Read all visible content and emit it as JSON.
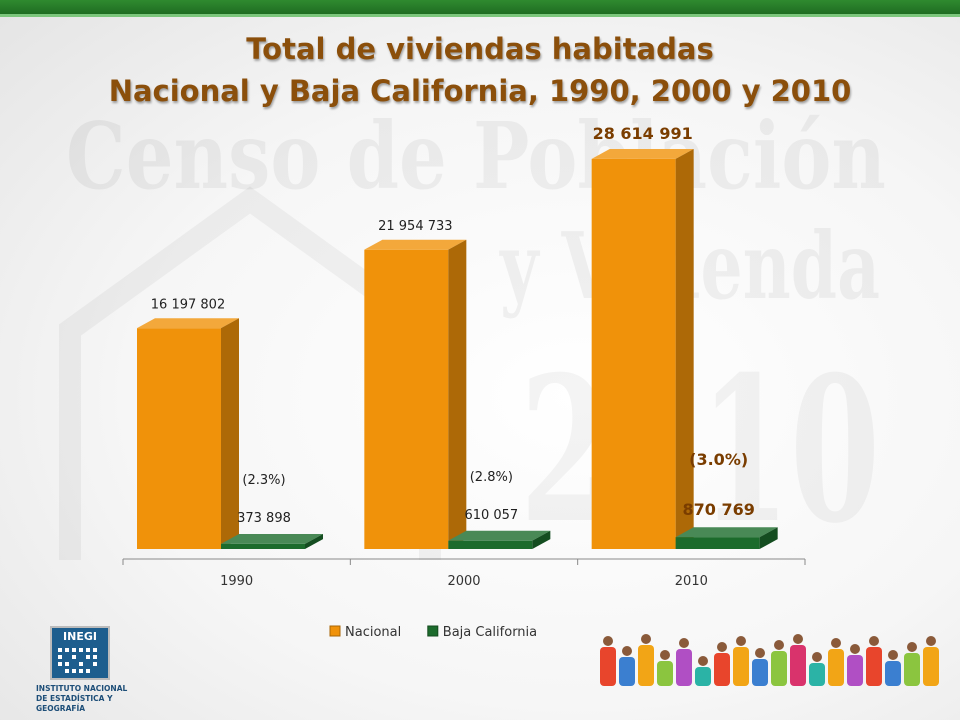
{
  "title_line1": "Total de viviendas habitadas",
  "title_line2": "Nacional y Baja California, 1990, 2000 y 2010",
  "watermark_line1": "Censo de Población",
  "watermark_line2": "y Vivienda",
  "watermark_year": "2010",
  "logo": {
    "acronym": "INEGI",
    "line1": "INSTITUTO NACIONAL",
    "line2": "DE ESTADÍSTICA Y GEOGRAFÍA"
  },
  "colors": {
    "nacional": "#f0920a",
    "baja_california": "#1c6b2c",
    "title": "#8b4f0b",
    "band": "#2a8430"
  },
  "chart_data": {
    "type": "bar",
    "categories": [
      "1990",
      "2000",
      "2010"
    ],
    "series": [
      {
        "name": "Nacional",
        "values": [
          16197802,
          21954733,
          28614991
        ],
        "labels": [
          "16 197 802",
          "21 954 733",
          "28 614 991"
        ]
      },
      {
        "name": "Baja California",
        "values": [
          373898,
          610057,
          870769
        ],
        "labels": [
          "373 898",
          "610 057",
          "870 769"
        ],
        "share_labels": [
          "(2.3%)",
          "(2.8%)",
          "(3.0%)"
        ]
      }
    ],
    "ylim": [
      0,
      30000000
    ],
    "legend": "bottom",
    "grid": false
  }
}
